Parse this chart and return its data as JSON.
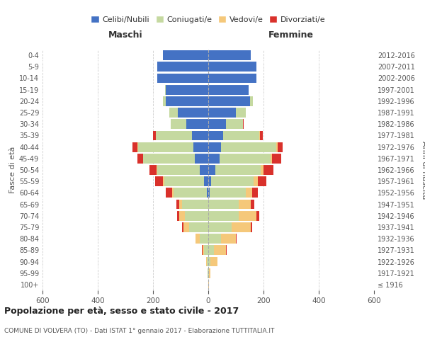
{
  "age_groups": [
    "100+",
    "95-99",
    "90-94",
    "85-89",
    "80-84",
    "75-79",
    "70-74",
    "65-69",
    "60-64",
    "55-59",
    "50-54",
    "45-49",
    "40-44",
    "35-39",
    "30-34",
    "25-29",
    "20-24",
    "15-19",
    "10-14",
    "5-9",
    "0-4"
  ],
  "birth_years": [
    "≤ 1916",
    "1917-1921",
    "1922-1926",
    "1927-1931",
    "1932-1936",
    "1937-1941",
    "1942-1946",
    "1947-1951",
    "1952-1956",
    "1957-1961",
    "1962-1966",
    "1967-1971",
    "1972-1976",
    "1977-1981",
    "1982-1986",
    "1987-1991",
    "1992-1996",
    "1997-2001",
    "2002-2006",
    "2007-2011",
    "2012-2016"
  ],
  "maschi_celibe": [
    0,
    0,
    0,
    0,
    0,
    0,
    0,
    0,
    5,
    15,
    30,
    50,
    55,
    60,
    80,
    110,
    155,
    155,
    185,
    185,
    165
  ],
  "maschi_coniugato": [
    0,
    2,
    5,
    15,
    30,
    70,
    85,
    95,
    120,
    145,
    155,
    185,
    200,
    130,
    55,
    30,
    10,
    2,
    0,
    0,
    0
  ],
  "maschi_vedovo": [
    0,
    0,
    3,
    5,
    15,
    20,
    20,
    10,
    5,
    3,
    2,
    2,
    2,
    1,
    0,
    0,
    0,
    0,
    0,
    0,
    0
  ],
  "maschi_divorziato": [
    0,
    0,
    0,
    2,
    2,
    5,
    8,
    10,
    25,
    30,
    25,
    20,
    18,
    10,
    2,
    0,
    0,
    0,
    0,
    0,
    0
  ],
  "femmine_celibe": [
    0,
    0,
    0,
    0,
    0,
    0,
    0,
    0,
    5,
    10,
    25,
    40,
    45,
    55,
    65,
    100,
    150,
    145,
    175,
    175,
    155
  ],
  "femmine_coniugato": [
    0,
    2,
    8,
    20,
    45,
    85,
    110,
    110,
    130,
    155,
    165,
    185,
    200,
    130,
    60,
    35,
    12,
    2,
    0,
    0,
    0
  ],
  "femmine_vedovo": [
    2,
    5,
    25,
    45,
    55,
    70,
    65,
    45,
    25,
    15,
    10,
    5,
    5,
    2,
    0,
    0,
    0,
    0,
    0,
    0,
    0
  ],
  "femmine_divorziato": [
    0,
    0,
    0,
    2,
    2,
    5,
    10,
    12,
    20,
    30,
    35,
    35,
    20,
    10,
    2,
    0,
    0,
    0,
    0,
    0,
    0
  ],
  "color_celibe": "#4472c4",
  "color_coniugato": "#c5d9a0",
  "color_vedovo": "#f5c87a",
  "color_divorziato": "#d9312b",
  "title_main": "Popolazione per età, sesso e stato civile - 2017",
  "title_sub": "COMUNE DI VOLVERA (TO) - Dati ISTAT 1° gennaio 2017 - Elaborazione TUTTITALIA.IT",
  "xlabel_left": "Maschi",
  "xlabel_right": "Femmine",
  "ylabel_left": "Fasce di età",
  "ylabel_right": "Anni di nascita",
  "legend_labels": [
    "Celibi/Nubili",
    "Coniugati/e",
    "Vedovi/e",
    "Divorziati/e"
  ],
  "xlim": 600,
  "grid_color": "#cccccc"
}
